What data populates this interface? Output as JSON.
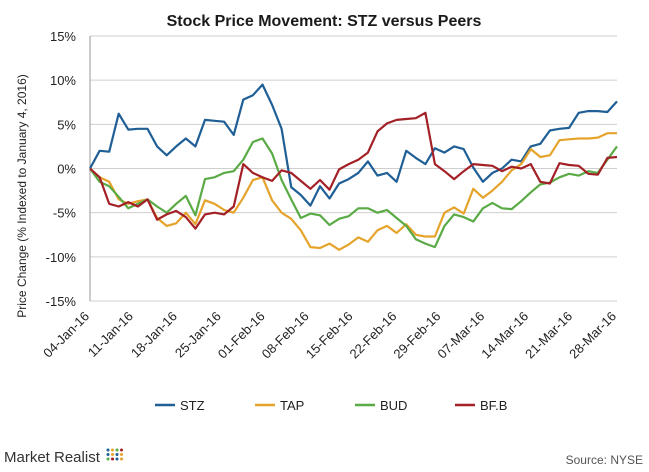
{
  "chart_data": {
    "type": "line",
    "title": "Stock Price Movement:  STZ versus Peers",
    "ylabel": "Price Change (% Indexed to January 4, 2016)",
    "xlabel": "",
    "ylim": [
      -15,
      15
    ],
    "yticks": [
      -15,
      -10,
      -5,
      0,
      5,
      10,
      15
    ],
    "ytick_labels": [
      "-15%",
      "-10%",
      "-5%",
      "0%",
      "5%",
      "10%",
      "15%"
    ],
    "x_tick_labels": [
      "04-Jan-16",
      "11-Jan-16",
      "18-Jan-16",
      "25-Jan-16",
      "01-Feb-16",
      "08-Feb-16",
      "15-Feb-16",
      "22-Feb-16",
      "29-Feb-16",
      "07-Mar-16",
      "14-Mar-16",
      "21-Mar-16",
      "28-Mar-16"
    ],
    "grid": true,
    "legend_position": "bottom",
    "series": [
      {
        "name": "STZ",
        "color": "#1f5f95",
        "values": [
          0,
          2,
          1.9,
          6.2,
          4.4,
          4.5,
          4.5,
          2.5,
          1.5,
          2.5,
          3.4,
          2.5,
          5.5,
          5.4,
          5.3,
          3.8,
          7.8,
          8.3,
          9.5,
          7.2,
          4.5,
          -2.1,
          -3,
          -4.2,
          -2,
          -3.4,
          -1.7,
          -1.2,
          -0.5,
          0.8,
          -0.8,
          -0.5,
          -1.5,
          2,
          1.2,
          0.5,
          2.3,
          1.8,
          2.5,
          2.2,
          0.1,
          -1.5,
          -0.5,
          0,
          1,
          0.8,
          2.5,
          2.8,
          4.3,
          4.5,
          4.6,
          6.3,
          6.5,
          6.5,
          6.4,
          7.6
        ]
      },
      {
        "name": "TAP",
        "color": "#e5a32b",
        "values": [
          0,
          -1,
          -1.5,
          -3.5,
          -4,
          -3.7,
          -3.5,
          -5.6,
          -6.5,
          -6.2,
          -5,
          -6.3,
          -3.6,
          -4,
          -4.7,
          -5,
          -3.3,
          -1.3,
          -1,
          -3.6,
          -5,
          -5.7,
          -7,
          -8.9,
          -9,
          -8.5,
          -9.2,
          -8.6,
          -7.8,
          -8.3,
          -7,
          -6.5,
          -7.3,
          -6.3,
          -7.5,
          -7.7,
          -7.7,
          -5,
          -4.4,
          -5.1,
          -2.3,
          -3.3,
          -2.5,
          -1.5,
          -0.2,
          0.5,
          2.2,
          1.3,
          1.5,
          3.2,
          3.3,
          3.4,
          3.4,
          3.5,
          4,
          4
        ]
      },
      {
        "name": "BUD",
        "color": "#5aaa46",
        "values": [
          0,
          -1.5,
          -2,
          -3.2,
          -4.5,
          -4,
          -3.5,
          -4.3,
          -5,
          -4,
          -3.1,
          -5.3,
          -1.2,
          -1,
          -0.5,
          -0.3,
          1,
          3,
          3.4,
          1.7,
          -1.3,
          -3.5,
          -5.6,
          -5.1,
          -5.3,
          -6.4,
          -5.7,
          -5.4,
          -4.5,
          -4.5,
          -5,
          -4.7,
          -5.6,
          -6.5,
          -8,
          -8.5,
          -8.9,
          -6.5,
          -5.2,
          -5.5,
          -6,
          -4.5,
          -3.9,
          -4.5,
          -4.6,
          -3.7,
          -2.7,
          -1.8,
          -1.6,
          -1,
          -0.6,
          -0.8,
          -0.3,
          -0.5,
          1,
          2.5
        ]
      },
      {
        "name": "BF.B",
        "color": "#a32027",
        "values": [
          0,
          -1,
          -4,
          -4.3,
          -3.8,
          -4.3,
          -3.5,
          -5.8,
          -5.2,
          -4.8,
          -5.5,
          -6.8,
          -5.2,
          -5,
          -5.2,
          -4.3,
          0.5,
          -0.5,
          -1,
          -1.4,
          -0.2,
          -0.5,
          -1.4,
          -2.3,
          -1.3,
          -2.4,
          -0.1,
          0.5,
          1,
          1.8,
          4.2,
          5.1,
          5.5,
          5.6,
          5.7,
          6.3,
          0.5,
          -0.3,
          -1.2,
          -0.3,
          0.5,
          0.4,
          0.3,
          -0.3,
          0.2,
          0,
          0.5,
          -1.5,
          -1.7,
          0.6,
          0.4,
          0.3,
          -0.6,
          -0.7,
          1.2,
          1.3
        ]
      }
    ]
  },
  "branding": {
    "name": "Market Realist",
    "source": "Source: NYSE"
  }
}
